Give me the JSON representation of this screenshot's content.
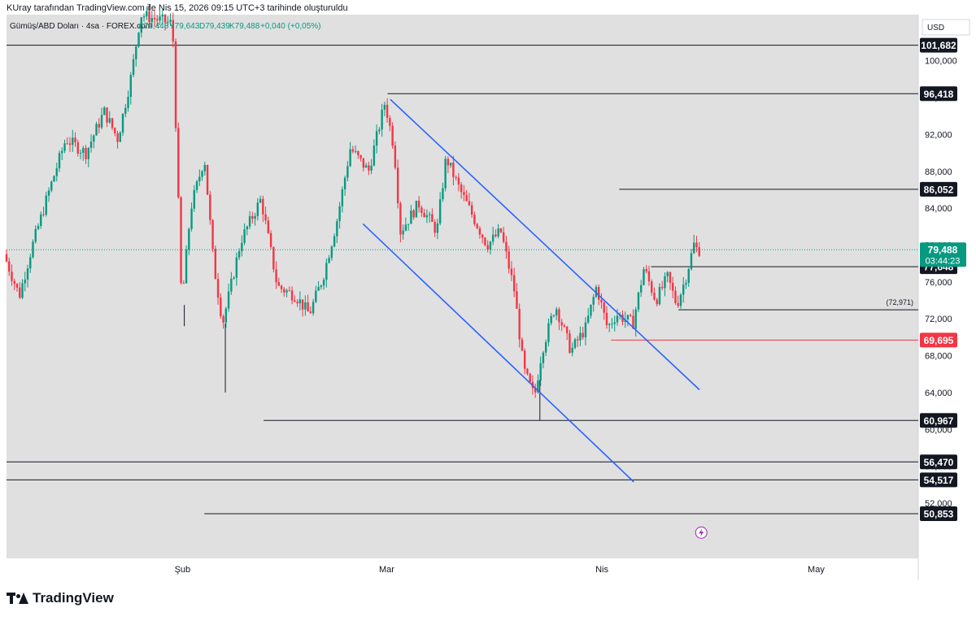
{
  "header": {
    "text": "KUray tarafından TradingView.com ile Nis 15, 2026 09:15 UTC+3 tarihinde oluşturuldu"
  },
  "legend": {
    "symbol": "Gümüş/ABD Doları · 4sa · FOREX.com",
    "open": "A79,448",
    "high": "Y79,643",
    "low": "D79,439",
    "close": "K79,488",
    "change": "+0,040 (+0,05%)"
  },
  "currency": "USD",
  "footer": {
    "brand": "TradingView"
  },
  "colors": {
    "up": "#089981",
    "down": "#f23645",
    "channel": "#2962ff",
    "bg": "#e0e0e0",
    "label_bg": "#131722",
    "support_red": "#f23645",
    "last_price": "#089981"
  },
  "chart_data": {
    "type": "candlestick",
    "title": "Gümüş/ABD Doları · 4sa · FOREX.com",
    "ylim": [
      46000,
      105000
    ],
    "y_ticks": [
      52000,
      56000,
      60000,
      64000,
      68000,
      72000,
      76000,
      80000,
      84000,
      88000,
      92000,
      96000,
      100000
    ],
    "y_tick_labels": [
      "52,000",
      "56,000",
      "60,000",
      "64,000",
      "68,000",
      "72,000",
      "76,000",
      "80,000",
      "84,000",
      "88,000",
      "92,000",
      "96,000",
      "100,000"
    ],
    "x_labels": [
      {
        "label": "Şub",
        "t": 0.193
      },
      {
        "label": "Mar",
        "t": 0.417
      },
      {
        "label": "Nis",
        "t": 0.653
      },
      {
        "label": "May",
        "t": 0.888
      }
    ],
    "anchor_points": [
      {
        "t": 0.0,
        "v": 79000
      },
      {
        "t": 0.017,
        "v": 74500
      },
      {
        "t": 0.03,
        "v": 79500
      },
      {
        "t": 0.05,
        "v": 86000
      },
      {
        "t": 0.068,
        "v": 91500
      },
      {
        "t": 0.09,
        "v": 90000
      },
      {
        "t": 0.11,
        "v": 94500
      },
      {
        "t": 0.125,
        "v": 91500
      },
      {
        "t": 0.14,
        "v": 98500
      },
      {
        "t": 0.15,
        "v": 105000
      },
      {
        "t": 0.185,
        "v": 104000
      },
      {
        "t": 0.195,
        "v": 73500
      },
      {
        "t": 0.205,
        "v": 84000
      },
      {
        "t": 0.22,
        "v": 89500
      },
      {
        "t": 0.23,
        "v": 78000
      },
      {
        "t": 0.24,
        "v": 71500
      },
      {
        "t": 0.26,
        "v": 80500
      },
      {
        "t": 0.282,
        "v": 85000
      },
      {
        "t": 0.3,
        "v": 75500
      },
      {
        "t": 0.32,
        "v": 74500
      },
      {
        "t": 0.335,
        "v": 72500
      },
      {
        "t": 0.35,
        "v": 76500
      },
      {
        "t": 0.365,
        "v": 82500
      },
      {
        "t": 0.38,
        "v": 90500
      },
      {
        "t": 0.4,
        "v": 88000
      },
      {
        "t": 0.418,
        "v": 95500
      },
      {
        "t": 0.428,
        "v": 90500
      },
      {
        "t": 0.435,
        "v": 81500
      },
      {
        "t": 0.455,
        "v": 84500
      },
      {
        "t": 0.475,
        "v": 81500
      },
      {
        "t": 0.485,
        "v": 89500
      },
      {
        "t": 0.5,
        "v": 86000
      },
      {
        "t": 0.515,
        "v": 83000
      },
      {
        "t": 0.53,
        "v": 80000
      },
      {
        "t": 0.545,
        "v": 81500
      },
      {
        "t": 0.56,
        "v": 75000
      },
      {
        "t": 0.57,
        "v": 66500
      },
      {
        "t": 0.582,
        "v": 63500
      },
      {
        "t": 0.59,
        "v": 68500
      },
      {
        "t": 0.605,
        "v": 73500
      },
      {
        "t": 0.622,
        "v": 68500
      },
      {
        "t": 0.638,
        "v": 71000
      },
      {
        "t": 0.65,
        "v": 75500
      },
      {
        "t": 0.662,
        "v": 71000
      },
      {
        "t": 0.672,
        "v": 72500
      },
      {
        "t": 0.69,
        "v": 71500
      },
      {
        "t": 0.702,
        "v": 77500
      },
      {
        "t": 0.715,
        "v": 74000
      },
      {
        "t": 0.728,
        "v": 76500
      },
      {
        "t": 0.738,
        "v": 73500
      },
      {
        "t": 0.748,
        "v": 76500
      },
      {
        "t": 0.758,
        "v": 80500
      },
      {
        "t": 0.76,
        "v": 79488
      }
    ],
    "wick_spikes": [
      {
        "t": 0.24,
        "v": 64000
      },
      {
        "t": 0.585,
        "v": 61000
      },
      {
        "t": 0.195,
        "v": 71200
      }
    ],
    "last_price": {
      "value": 79488,
      "label": "79,488",
      "countdown": "03:44:23"
    },
    "horizontal_levels": [
      {
        "value": 101682,
        "label": "101,682",
        "t_start": 0.0,
        "color": "#131722"
      },
      {
        "value": 96418,
        "label": "96,418",
        "t_start": 0.418,
        "color": "#131722"
      },
      {
        "value": 86052,
        "label": "86,052",
        "t_start": 0.672,
        "color": "#131722"
      },
      {
        "value": 77648,
        "label": "77,648",
        "t_start": 0.707,
        "color": "#131722"
      },
      {
        "value": 72971,
        "label": "(72,971)",
        "t_start": 0.737,
        "color": "#131722",
        "inline": true
      },
      {
        "value": 69695,
        "label": "69,695",
        "t_start": 0.663,
        "color": "#f23645"
      },
      {
        "value": 60967,
        "label": "60,967",
        "t_start": 0.282,
        "color": "#131722"
      },
      {
        "value": 56470,
        "label": "56,470",
        "t_start": 0.0,
        "color": "#131722"
      },
      {
        "value": 54517,
        "label": "54,517",
        "t_start": 0.0,
        "color": "#131722"
      },
      {
        "value": 50853,
        "label": "50,853",
        "t_start": 0.217,
        "color": "#131722"
      }
    ],
    "channel_lines": [
      {
        "t1": 0.421,
        "v1": 95800,
        "t2": 0.76,
        "v2": 64300
      },
      {
        "t1": 0.391,
        "v1": 82300,
        "t2": 0.688,
        "v2": 54300
      }
    ],
    "annotation_icon": {
      "t": 0.762,
      "v": 48800,
      "name": "lightning"
    }
  }
}
